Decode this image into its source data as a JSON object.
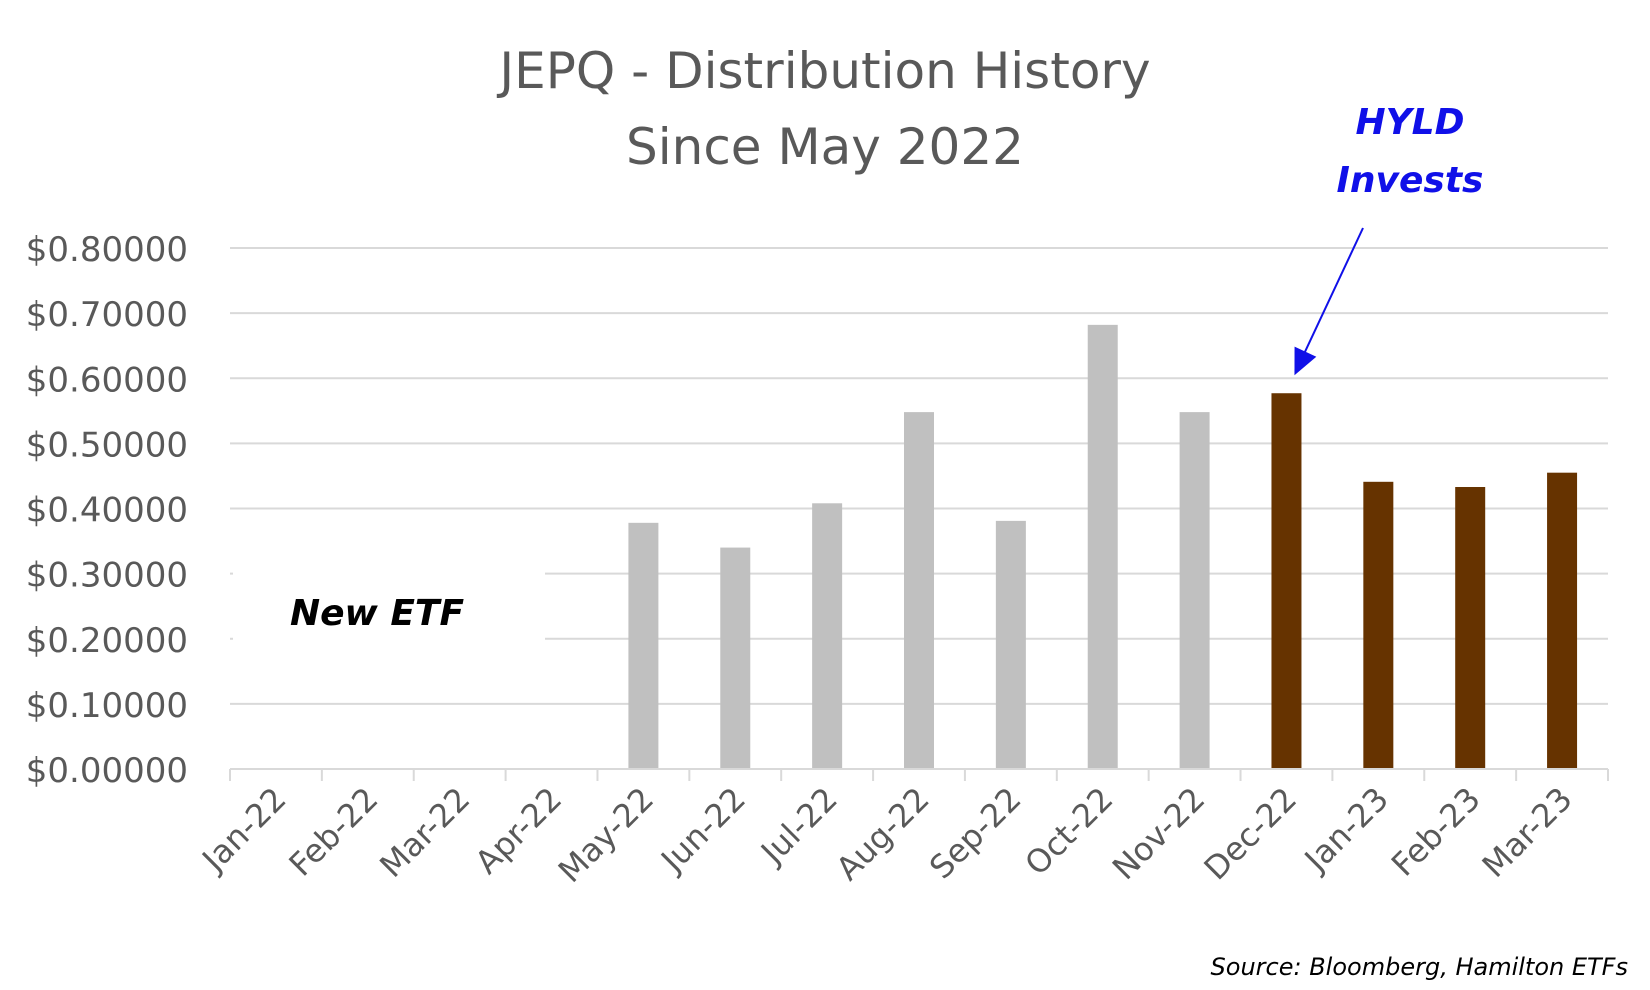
{
  "title_line_1": "JEPQ - Distribution History",
  "title_line_2": "Since May 2022",
  "annotations": {
    "hyld_line_1": "HYLD",
    "hyld_line_2": "Invests",
    "new_etf": "New ETF",
    "source": "Source: Bloomberg, Hamilton ETFs"
  },
  "colors": {
    "pre_hyld_bar": "#c0c0c0",
    "hyld_bar": "#663300",
    "arrow": "#1010e8",
    "grid": "#d9d9d9",
    "text": "#595959"
  },
  "chart_data": {
    "type": "bar",
    "title": "JEPQ - Distribution History Since May 2022",
    "categories": [
      "Jan-22",
      "Feb-22",
      "Mar-22",
      "Apr-22",
      "May-22",
      "Jun-22",
      "Jul-22",
      "Aug-22",
      "Sep-22",
      "Oct-22",
      "Nov-22",
      "Dec-22",
      "Jan-23",
      "Feb-23",
      "Mar-23"
    ],
    "values": [
      null,
      null,
      null,
      null,
      0.378,
      0.34,
      0.408,
      0.548,
      0.381,
      0.682,
      0.548,
      0.577,
      0.441,
      0.433,
      0.455
    ],
    "bar_groups": [
      "none",
      "none",
      "none",
      "none",
      "pre",
      "pre",
      "pre",
      "pre",
      "pre",
      "pre",
      "pre",
      "hyld",
      "hyld",
      "hyld",
      "hyld"
    ],
    "ylim": [
      0,
      0.8
    ],
    "yticks": [
      0,
      0.1,
      0.2,
      0.3,
      0.4,
      0.5,
      0.6,
      0.7,
      0.8
    ],
    "ytick_labels": [
      "$0.00000",
      "$0.10000",
      "$0.20000",
      "$0.30000",
      "$0.40000",
      "$0.50000",
      "$0.60000",
      "$0.70000",
      "$0.80000"
    ],
    "xlabel": "",
    "ylabel": "",
    "grid": true,
    "legend": "none",
    "arrow_target_category": "Dec-22"
  }
}
